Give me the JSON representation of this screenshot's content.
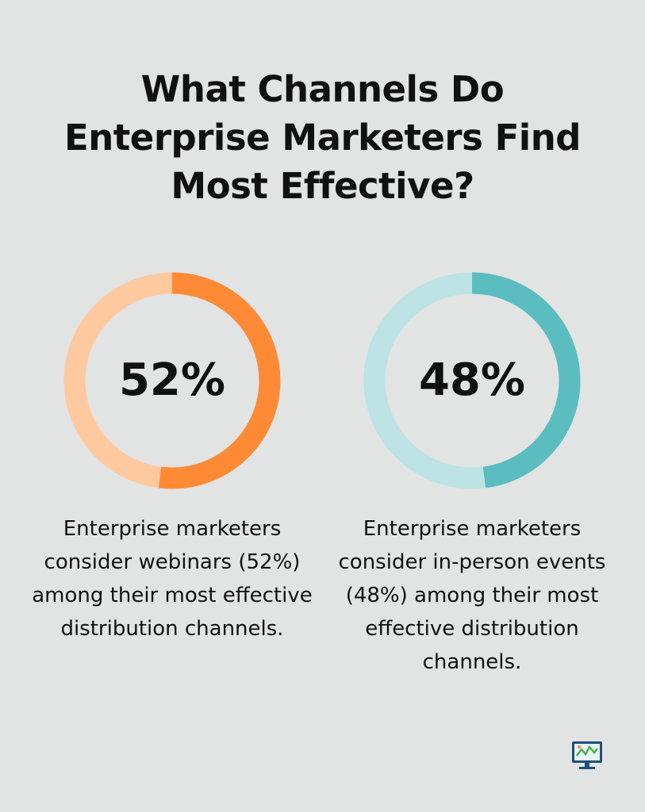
{
  "title_lines": [
    "What Channels Do",
    "Enterprise Marketers Find",
    "Most Effective?"
  ],
  "chart_data": {
    "type": "pie",
    "charts": [
      {
        "label": "52%",
        "value": 52,
        "colors": {
          "filled": "#ff8a35",
          "track": "#ffc9a0"
        },
        "description_lines": [
          "Enterprise marketers",
          "consider webinars (52%)",
          "among their most effective",
          "distribution channels."
        ]
      },
      {
        "label": "48%",
        "value": 48,
        "colors": {
          "filled": "#5bbdc0",
          "track": "#bde3e4"
        },
        "description_lines": [
          "Enterprise marketers",
          "consider in-person events",
          "(48%) among their most",
          "effective distribution",
          "channels."
        ]
      }
    ]
  },
  "logo_icon": "monitor-logo-icon",
  "background_color": "#e2e3e3"
}
